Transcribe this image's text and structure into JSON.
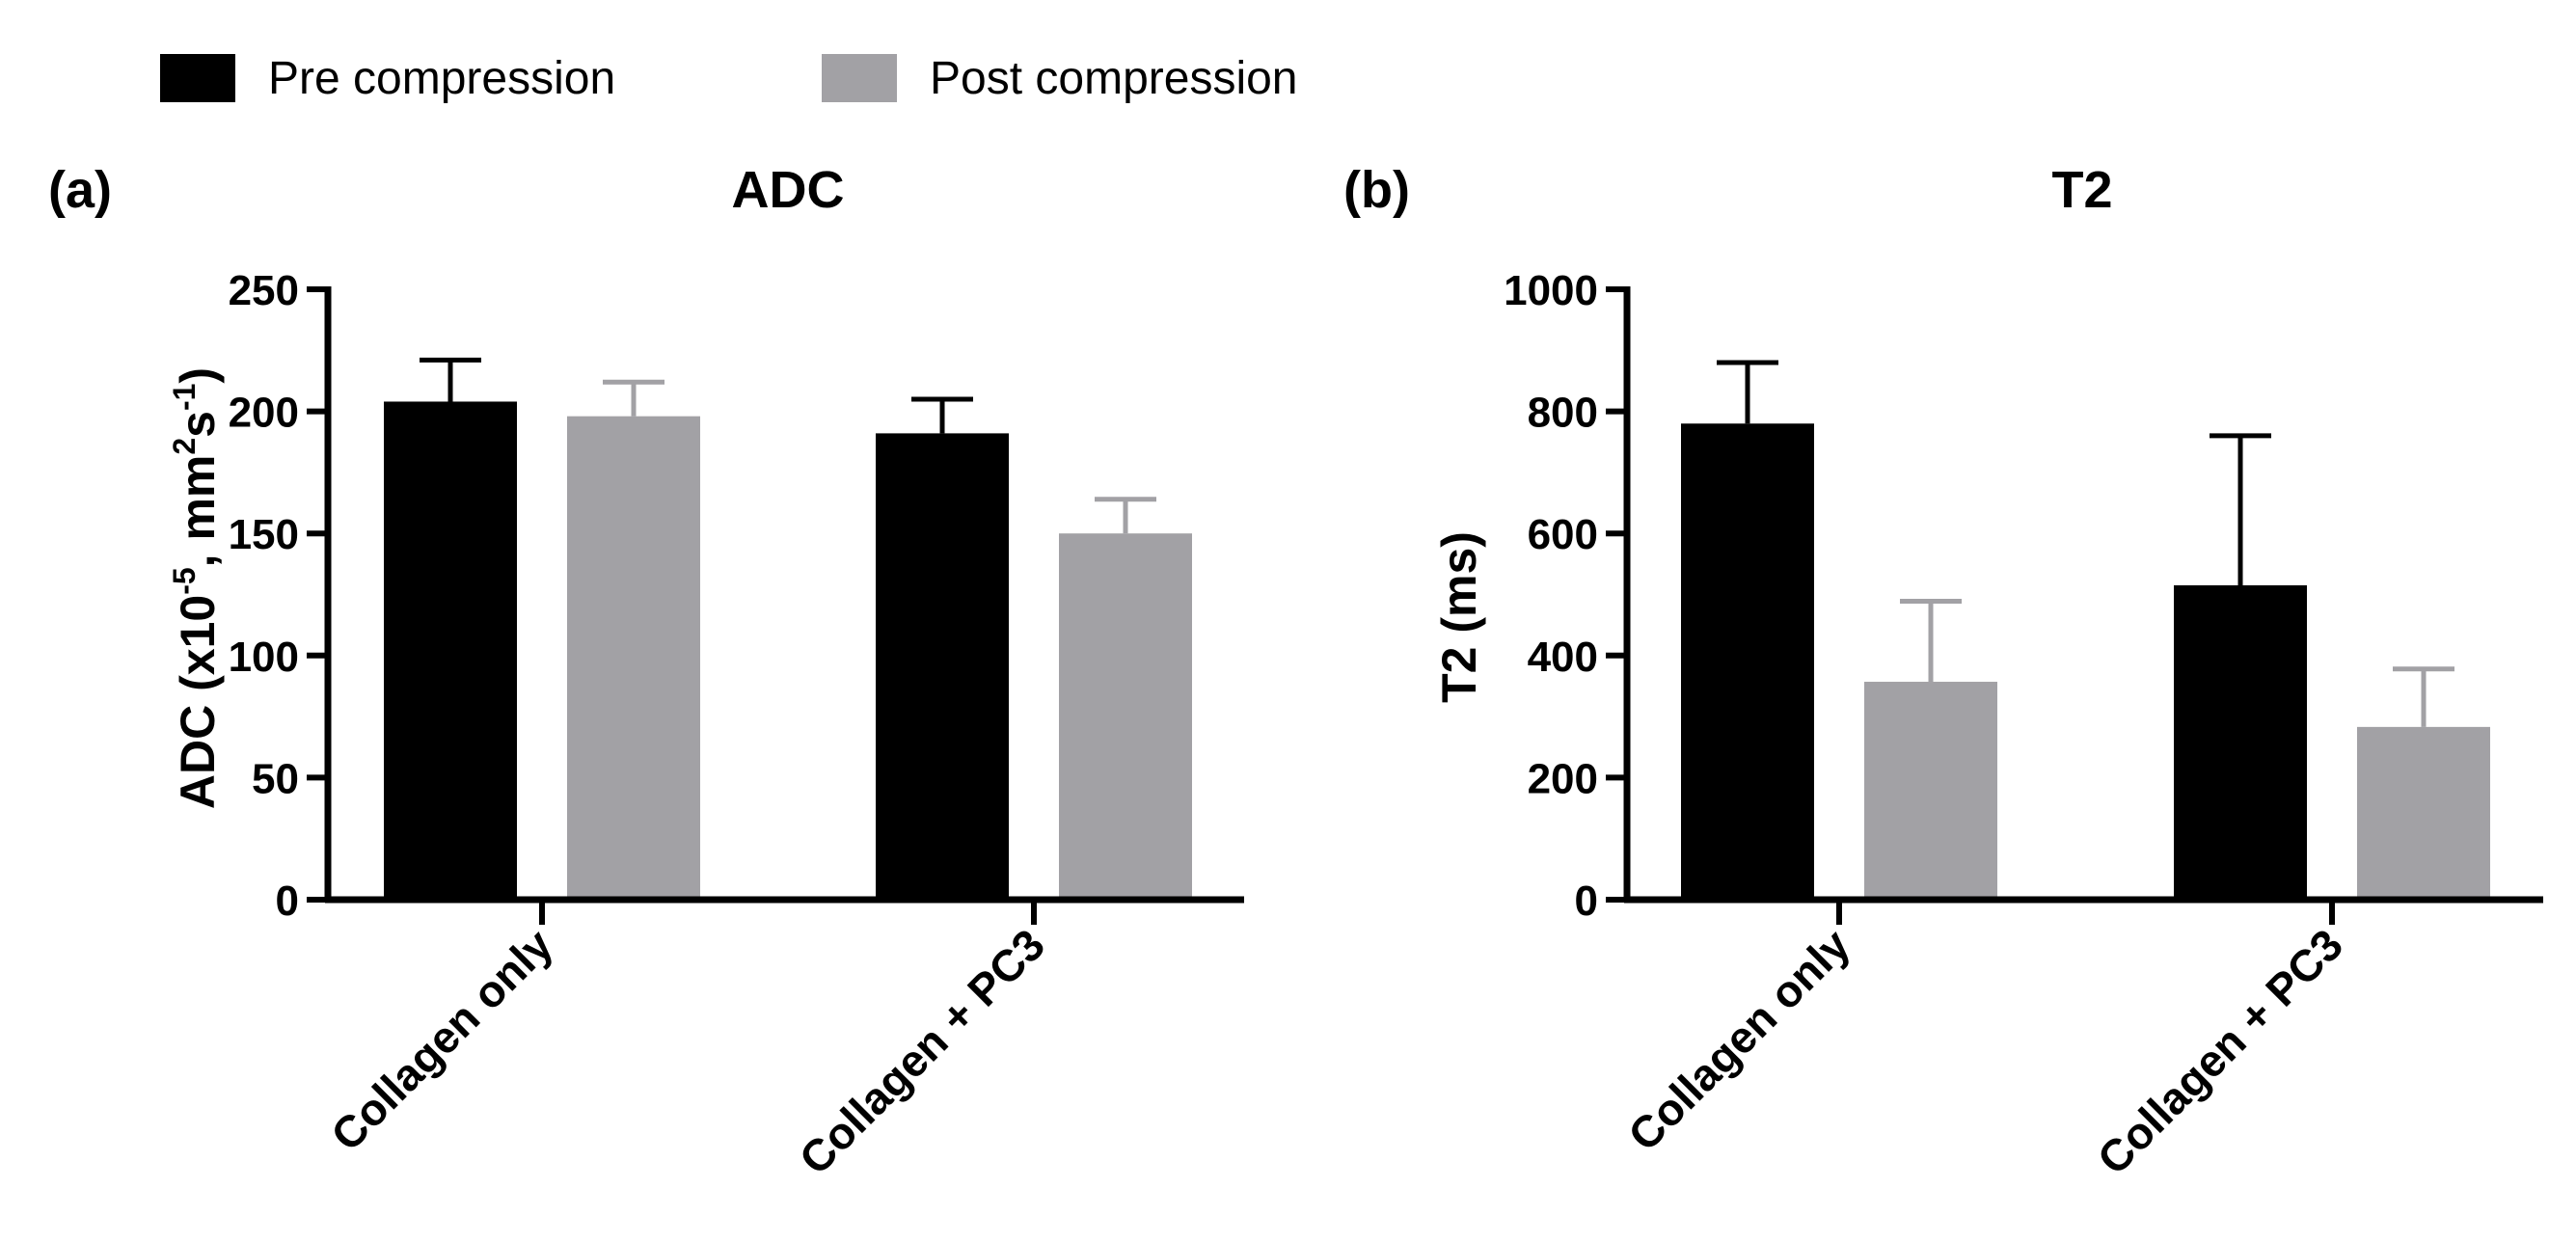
{
  "legend": {
    "entries": [
      {
        "label": "Pre compression",
        "color": "#000000"
      },
      {
        "label": "Post compression",
        "color": "#a2a1a5"
      }
    ]
  },
  "chart_data": [
    {
      "type": "bar",
      "panel_label": "(a)",
      "title": "ADC",
      "ylabel_parts": [
        "ADC (x10",
        "-5",
        ", mm",
        "2",
        "s",
        "-1",
        ")"
      ],
      "xlabel": "",
      "categories": [
        "Collagen only",
        "Collagen + PC3"
      ],
      "series": [
        {
          "name": "Pre compression",
          "values": [
            204,
            191
          ],
          "errors": [
            17,
            14
          ]
        },
        {
          "name": "Post compression",
          "values": [
            198,
            150
          ],
          "errors": [
            14,
            14
          ]
        }
      ],
      "ylim": [
        0,
        250
      ],
      "yticks": [
        "0",
        "50",
        "100",
        "150",
        "200",
        "250"
      ],
      "ytick_values": [
        0,
        50,
        100,
        150,
        200,
        250
      ]
    },
    {
      "type": "bar",
      "panel_label": "(b)",
      "title": "T2",
      "ylabel_parts": [
        "T2 (ms)"
      ],
      "xlabel": "",
      "categories": [
        "Collagen only",
        "Collagen + PC3"
      ],
      "series": [
        {
          "name": "Pre compression",
          "values": [
            780,
            515
          ],
          "errors": [
            100,
            245
          ]
        },
        {
          "name": "Post compression",
          "values": [
            357,
            283
          ],
          "errors": [
            132,
            95
          ]
        }
      ],
      "ylim": [
        0,
        1000
      ],
      "yticks": [
        "0",
        "200",
        "400",
        "600",
        "800",
        "1000"
      ],
      "ytick_values": [
        0,
        200,
        400,
        600,
        800,
        1000
      ]
    }
  ]
}
